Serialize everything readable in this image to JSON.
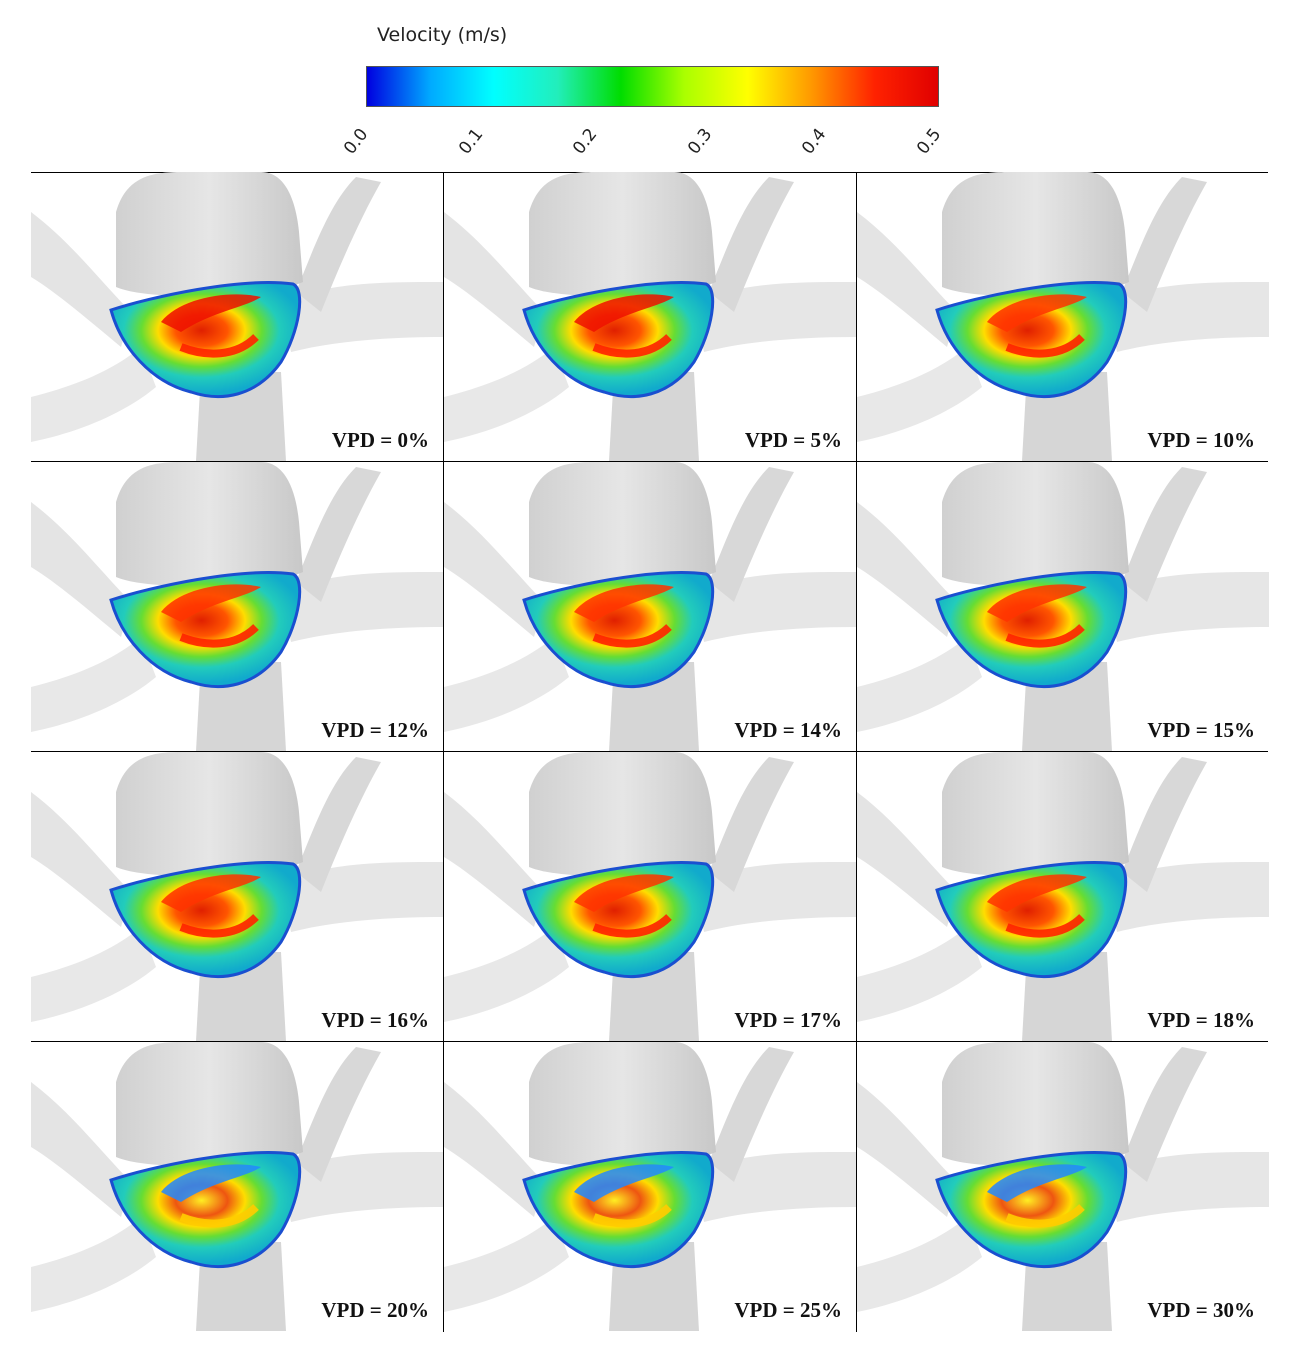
{
  "colorbar": {
    "title": "Velocity (m/s)",
    "ticks": [
      "0.0",
      "0.1",
      "0.2",
      "0.3",
      "0.4",
      "0.5"
    ],
    "colors": [
      "#0000e0",
      "#00aaff",
      "#00ffff",
      "#22eebb",
      "#00dd00",
      "#aaff00",
      "#ffff00",
      "#ff9900",
      "#ff2200",
      "#e00000"
    ]
  },
  "panels": [
    {
      "label": "VPD = 0%"
    },
    {
      "label": "VPD = 5%"
    },
    {
      "label": "VPD = 10%"
    },
    {
      "label": "VPD = 12%"
    },
    {
      "label": "VPD = 14%"
    },
    {
      "label": "VPD = 15%"
    },
    {
      "label": "VPD = 16%"
    },
    {
      "label": "VPD = 17%"
    },
    {
      "label": "VPD = 18%"
    },
    {
      "label": "VPD = 20%"
    },
    {
      "label": "VPD = 25%"
    },
    {
      "label": "VPD = 30%"
    }
  ]
}
